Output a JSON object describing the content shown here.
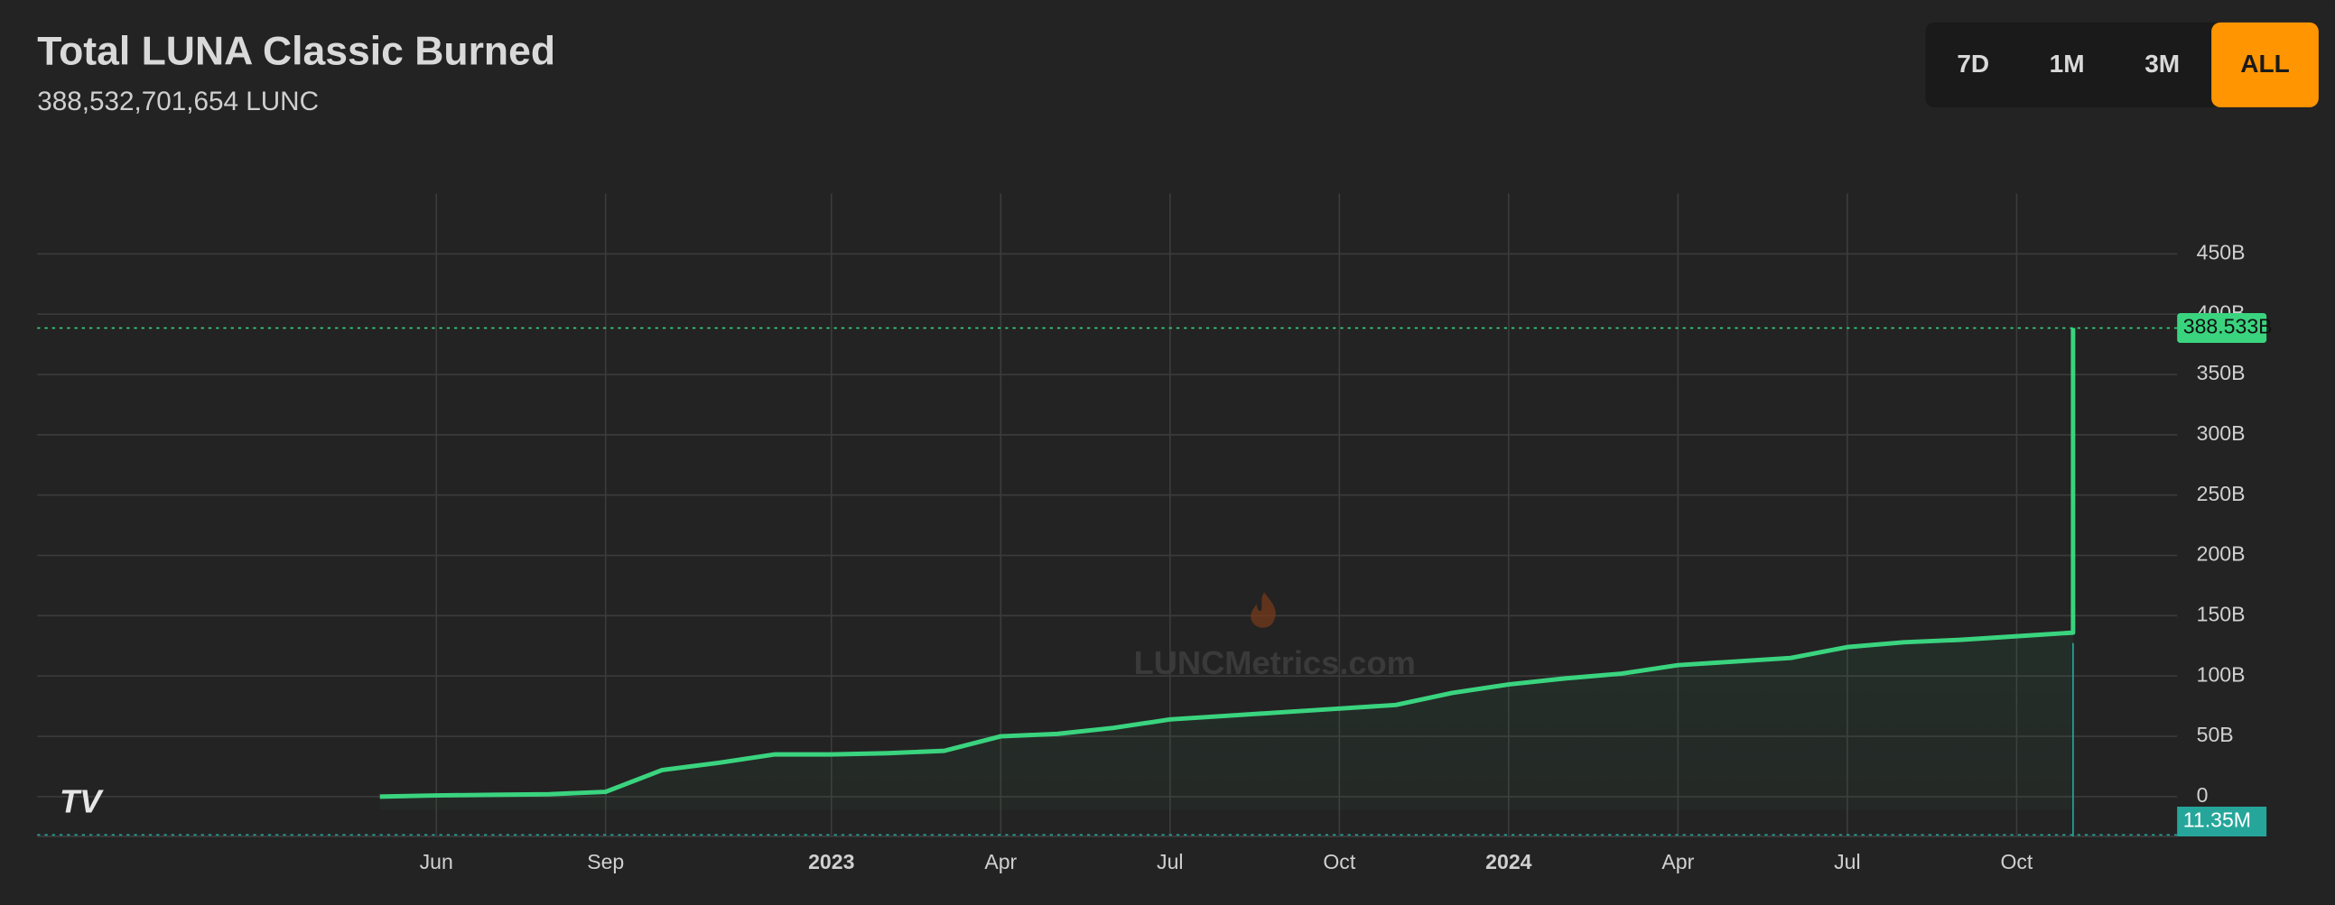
{
  "header": {
    "title": "Total LUNA Classic Burned",
    "subtitle": "388,532,701,654 LUNC"
  },
  "range_buttons": {
    "options": [
      "7D",
      "1M",
      "3M",
      "ALL"
    ],
    "active": 3
  },
  "chart_data": {
    "type": "line",
    "x": [
      "2022-05",
      "2022-06",
      "2022-07",
      "2022-08",
      "2022-09",
      "2022-10",
      "2022-11",
      "2022-12",
      "2023-01",
      "2023-02",
      "2023-03",
      "2023-04",
      "2023-05",
      "2023-06",
      "2023-07",
      "2023-08",
      "2023-09",
      "2023-10",
      "2023-11",
      "2023-12",
      "2024-01",
      "2024-02",
      "2024-03",
      "2024-04",
      "2024-05",
      "2024-06",
      "2024-07",
      "2024-08",
      "2024-09",
      "2024-10",
      "2024-11",
      "2024-11"
    ],
    "series": [
      {
        "name": "Total burned",
        "color": "#3ad47f",
        "values": [
          0,
          1,
          1.5,
          2,
          4,
          22,
          28,
          35,
          35,
          36,
          38,
          50,
          52,
          57,
          64,
          67,
          70,
          73,
          76,
          86,
          93,
          98,
          102,
          109,
          112,
          115,
          124,
          128,
          130,
          133,
          136,
          388.533
        ],
        "last_label": "388.533B"
      }
    ],
    "ylim": [
      -33,
      500
    ],
    "yticks": [
      0,
      {
        "value": 50,
        "label": "50B"
      },
      {
        "value": 100,
        "label": "100B"
      },
      {
        "value": 150,
        "label": "150B"
      },
      {
        "value": 200,
        "label": "200B"
      },
      {
        "value": 250,
        "label": "250B"
      },
      {
        "value": 300,
        "label": "300B"
      },
      {
        "value": 350,
        "label": "350B"
      },
      {
        "value": 400,
        "label": "400B"
      },
      {
        "value": 450,
        "label": "450B"
      }
    ],
    "xticks": [
      {
        "value": "2022-06",
        "label": "Jun"
      },
      {
        "value": "2022-09",
        "label": "Sep"
      },
      {
        "value": "2023-01",
        "label": "2023"
      },
      {
        "value": "2023-04",
        "label": "Apr"
      },
      {
        "value": "2023-07",
        "label": "Jul"
      },
      {
        "value": "2023-10",
        "label": "Oct"
      },
      {
        "value": "2024-01",
        "label": "2024"
      },
      {
        "value": "2024-04",
        "label": "Apr"
      },
      {
        "value": "2024-07",
        "label": "Jul"
      },
      {
        "value": "2024-10",
        "label": "Oct"
      }
    ],
    "grid": true,
    "volume_label": "11.35M",
    "watermark": "LUNCMetrics.com"
  }
}
